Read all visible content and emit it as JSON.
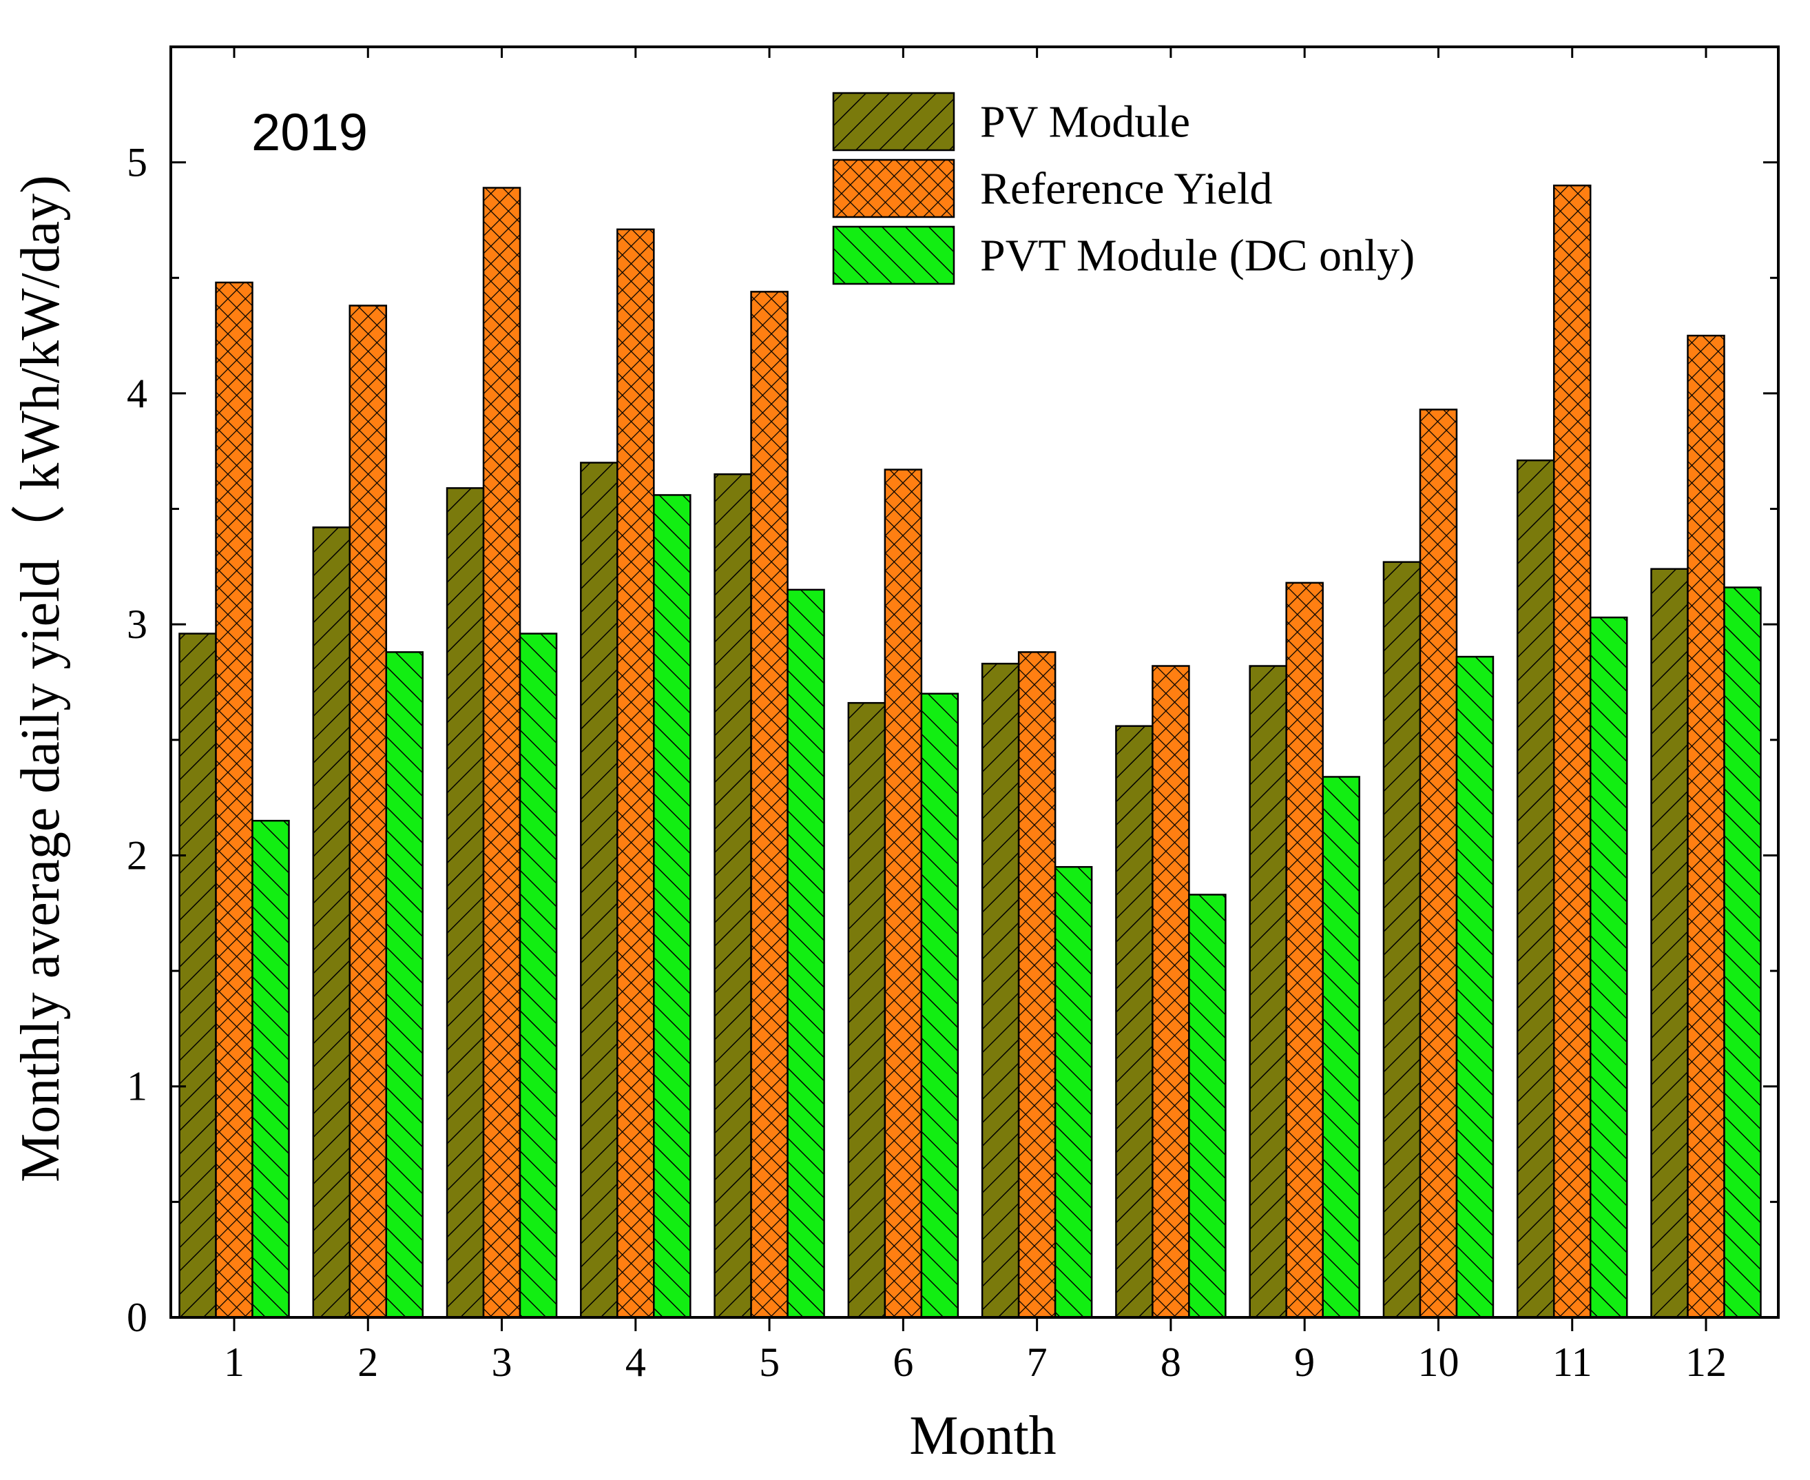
{
  "chart_data": {
    "type": "bar",
    "title": "",
    "annotation": "2019",
    "xlabel": "Month",
    "ylabel": "Monthly average daily yield（ kWh/kW/day)",
    "categories": [
      "1",
      "2",
      "3",
      "4",
      "5",
      "6",
      "7",
      "8",
      "9",
      "10",
      "11",
      "12"
    ],
    "ylim": [
      0,
      5.5
    ],
    "yticks": [
      "0",
      "1",
      "2",
      "3",
      "4",
      "5"
    ],
    "legend_position": "top-right",
    "series": [
      {
        "name": "PV Module",
        "color": "#7a7a0c",
        "pattern": "diagonal-forward",
        "values": [
          2.96,
          3.42,
          3.59,
          3.7,
          3.65,
          2.66,
          2.83,
          2.56,
          2.82,
          3.27,
          3.71,
          3.24
        ]
      },
      {
        "name": "Reference Yield",
        "color": "#ff7f12",
        "pattern": "crosshatch",
        "values": [
          4.48,
          4.38,
          4.89,
          4.71,
          4.44,
          3.67,
          2.88,
          2.82,
          3.18,
          3.93,
          4.9,
          4.25
        ]
      },
      {
        "name": "PVT Module (DC only)",
        "color": "#12ee12",
        "pattern": "diagonal-back",
        "values": [
          2.15,
          2.88,
          2.96,
          3.56,
          3.15,
          2.7,
          1.95,
          1.83,
          2.34,
          2.86,
          3.03,
          3.16
        ]
      }
    ]
  }
}
